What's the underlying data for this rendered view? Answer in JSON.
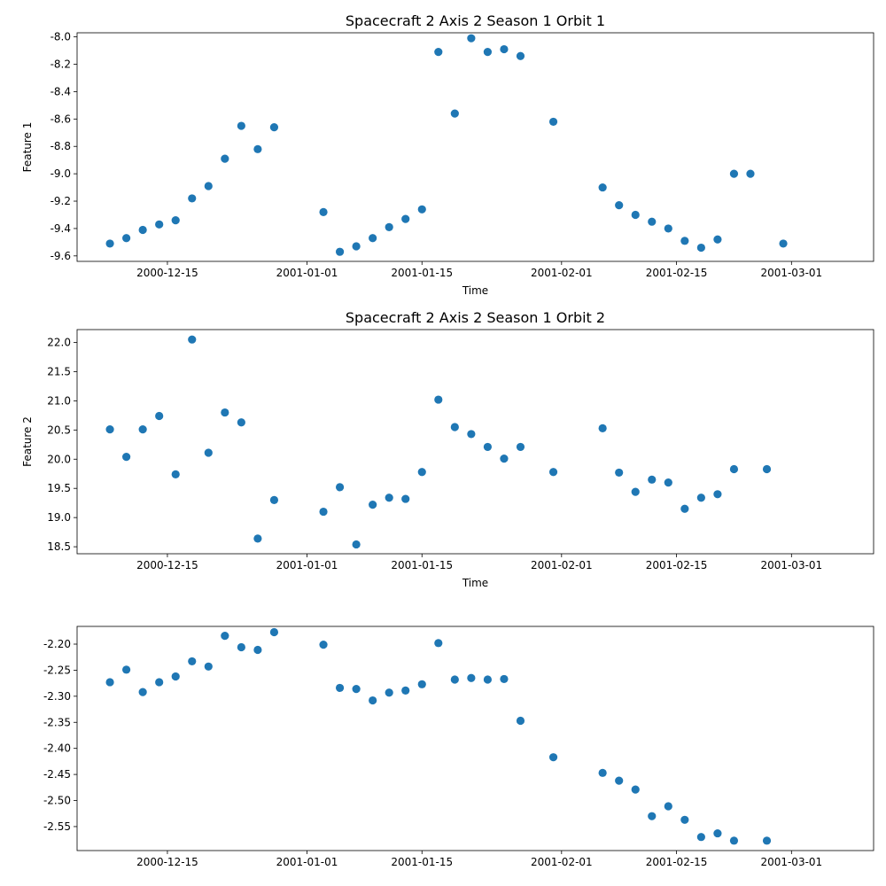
{
  "chart_data": [
    {
      "type": "scatter",
      "title": "Spacecraft 2 Axis 2 Season 1 Orbit 1",
      "xlabel": "Time",
      "ylabel": "Feature 1",
      "color": "#1f77b4",
      "xlim": [
        "2000-12-04",
        "2001-03-11"
      ],
      "ylim": [
        -9.64,
        -7.97
      ],
      "xticks": [
        "2000-12-15",
        "2001-01-01",
        "2001-01-15",
        "2001-02-01",
        "2001-02-15",
        "2001-03-01"
      ],
      "yticks": [
        "-9.6",
        "-9.4",
        "-9.2",
        "-9.0",
        "-8.8",
        "-8.6",
        "-8.4",
        "-8.2",
        "-8.0"
      ],
      "x": [
        "2000-12-08",
        "2000-12-10",
        "2000-12-12",
        "2000-12-14",
        "2000-12-16",
        "2000-12-18",
        "2000-12-20",
        "2000-12-22",
        "2000-12-24",
        "2000-12-26",
        "2000-12-28",
        "2001-01-03",
        "2001-01-05",
        "2001-01-07",
        "2001-01-09",
        "2001-01-11",
        "2001-01-13",
        "2001-01-15",
        "2001-01-17",
        "2001-01-19",
        "2001-01-21",
        "2001-01-23",
        "2001-01-25",
        "2001-01-27",
        "2001-01-31",
        "2001-02-06",
        "2001-02-08",
        "2001-02-10",
        "2001-02-12",
        "2001-02-14",
        "2001-02-16",
        "2001-02-18",
        "2001-02-20",
        "2001-02-22",
        "2001-02-24",
        "2001-02-28"
      ],
      "y": [
        -9.51,
        -9.47,
        -9.41,
        -9.37,
        -9.34,
        -9.18,
        -9.09,
        -8.89,
        -8.65,
        -8.82,
        -8.66,
        -9.28,
        -9.57,
        -9.53,
        -9.47,
        -9.39,
        -9.33,
        -9.26,
        -8.11,
        -8.56,
        -8.01,
        -8.11,
        -8.09,
        -8.14,
        -8.62,
        -9.1,
        -9.23,
        -9.3,
        -9.35,
        -9.4,
        -9.49,
        -9.54,
        -9.48,
        -9.0,
        -9.0,
        -9.51
      ]
    },
    {
      "type": "scatter",
      "title": "Spacecraft 2 Axis 2 Season 1 Orbit 2",
      "xlabel": "Time",
      "ylabel": "Feature 2",
      "color": "#1f77b4",
      "xlim": [
        "2000-12-04",
        "2001-03-11"
      ],
      "ylim": [
        18.38,
        22.22
      ],
      "xticks": [
        "2000-12-15",
        "2001-01-01",
        "2001-01-15",
        "2001-02-01",
        "2001-02-15",
        "2001-03-01"
      ],
      "yticks": [
        "18.5",
        "19.0",
        "19.5",
        "20.0",
        "20.5",
        "21.0",
        "21.5",
        "22.0"
      ],
      "x": [
        "2000-12-08",
        "2000-12-10",
        "2000-12-12",
        "2000-12-14",
        "2000-12-16",
        "2000-12-18",
        "2000-12-20",
        "2000-12-22",
        "2000-12-24",
        "2000-12-26",
        "2000-12-28",
        "2001-01-03",
        "2001-01-05",
        "2001-01-07",
        "2001-01-09",
        "2001-01-11",
        "2001-01-13",
        "2001-01-15",
        "2001-01-17",
        "2001-01-19",
        "2001-01-21",
        "2001-01-23",
        "2001-01-25",
        "2001-01-27",
        "2001-01-31",
        "2001-02-06",
        "2001-02-08",
        "2001-02-10",
        "2001-02-12",
        "2001-02-14",
        "2001-02-16",
        "2001-02-18",
        "2001-02-20",
        "2001-02-22",
        "2001-02-26"
      ],
      "y": [
        20.51,
        20.04,
        20.51,
        20.74,
        19.74,
        22.05,
        20.11,
        20.8,
        20.63,
        18.64,
        19.3,
        19.1,
        19.52,
        18.54,
        19.22,
        19.34,
        19.32,
        19.78,
        21.02,
        20.55,
        20.43,
        20.21,
        20.01,
        20.21,
        19.78,
        20.53,
        19.77,
        19.44,
        19.65,
        19.6,
        19.15,
        19.34,
        19.4,
        19.83,
        19.83
      ]
    },
    {
      "type": "scatter",
      "title": "",
      "xlabel": "",
      "ylabel": "",
      "color": "#1f77b4",
      "xlim": [
        "2000-12-04",
        "2001-03-11"
      ],
      "ylim": [
        -2.596,
        -2.166
      ],
      "xticks": [
        "2000-12-15",
        "2001-01-01",
        "2001-01-15",
        "2001-02-01",
        "2001-02-15",
        "2001-03-01"
      ],
      "yticks": [
        "-2.55",
        "-2.50",
        "-2.45",
        "-2.40",
        "-2.35",
        "-2.30",
        "-2.25",
        "-2.20"
      ],
      "x": [
        "2000-12-08",
        "2000-12-10",
        "2000-12-12",
        "2000-12-14",
        "2000-12-16",
        "2000-12-18",
        "2000-12-20",
        "2000-12-22",
        "2000-12-24",
        "2000-12-26",
        "2000-12-28",
        "2001-01-03",
        "2001-01-05",
        "2001-01-07",
        "2001-01-09",
        "2001-01-11",
        "2001-01-13",
        "2001-01-15",
        "2001-01-17",
        "2001-01-19",
        "2001-01-21",
        "2001-01-23",
        "2001-01-25",
        "2001-01-27",
        "2001-01-31",
        "2001-02-06",
        "2001-02-08",
        "2001-02-10",
        "2001-02-12",
        "2001-02-14",
        "2001-02-16",
        "2001-02-18",
        "2001-02-20",
        "2001-02-22",
        "2001-02-26"
      ],
      "y": [
        -2.273,
        -2.249,
        -2.292,
        -2.273,
        -2.262,
        -2.233,
        -2.243,
        -2.184,
        -2.206,
        -2.211,
        -2.177,
        -2.201,
        -2.284,
        -2.286,
        -2.308,
        -2.293,
        -2.289,
        -2.277,
        -2.198,
        -2.268,
        -2.265,
        -2.268,
        -2.267,
        -2.347,
        -2.417,
        -2.447,
        -2.462,
        -2.479,
        -2.53,
        -2.511,
        -2.537,
        -2.57,
        -2.563,
        -2.577,
        -2.577
      ]
    }
  ]
}
